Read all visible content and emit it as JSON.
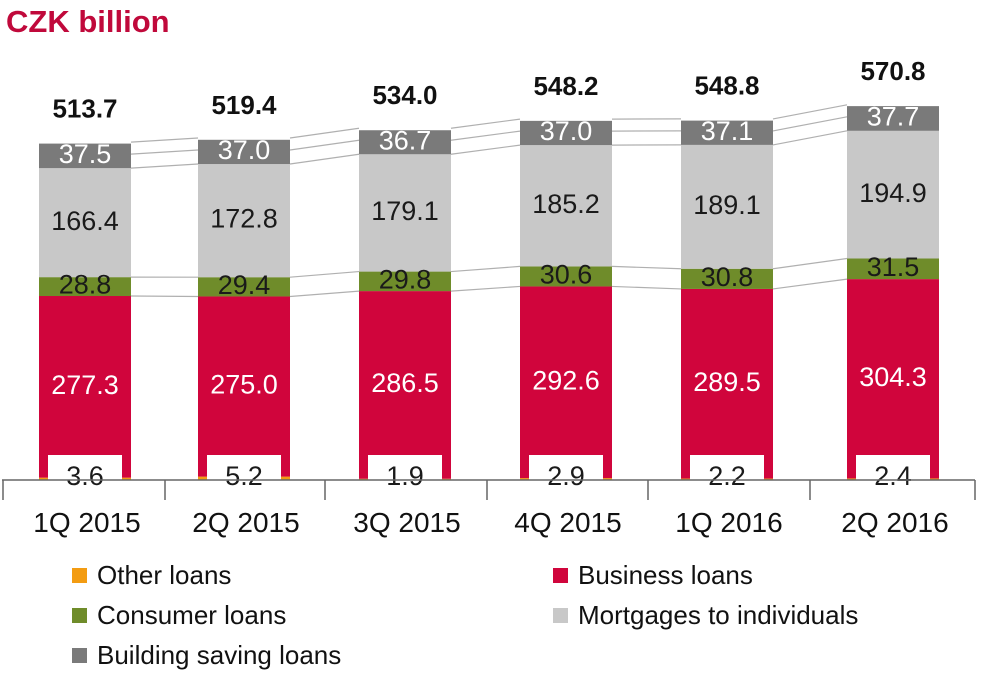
{
  "chart_data": {
    "type": "bar",
    "stacked": true,
    "title": "CZK billion",
    "categories": [
      "1Q 2015",
      "2Q 2015",
      "3Q 2015",
      "4Q 2015",
      "1Q 2016",
      "2Q 2016"
    ],
    "totals": [
      "513.7",
      "519.4",
      "534.0",
      "548.2",
      "548.8",
      "570.8"
    ],
    "series": [
      {
        "name": "Other loans",
        "color": "#f39c12",
        "values": [
          3.6,
          5.2,
          1.9,
          2.9,
          2.2,
          2.4
        ],
        "labels": [
          "3.6",
          "5.2",
          "1.9",
          "2.9",
          "2.2",
          "2.4"
        ]
      },
      {
        "name": "Business loans",
        "color": "#d0053c",
        "values": [
          277.3,
          275.0,
          286.5,
          292.6,
          289.5,
          304.3
        ],
        "labels": [
          "277.3",
          "275.0",
          "286.5",
          "292.6",
          "289.5",
          "304.3"
        ]
      },
      {
        "name": "Consumer loans",
        "color": "#6f8c2a",
        "values": [
          28.8,
          29.4,
          29.8,
          30.6,
          30.8,
          31.5
        ],
        "labels": [
          "28.8",
          "29.4",
          "29.8",
          "30.6",
          "30.8",
          "31.5"
        ]
      },
      {
        "name": "Mortgages to individuals",
        "color": "#c8c8c8",
        "values": [
          166.4,
          172.8,
          179.1,
          185.2,
          189.1,
          194.9
        ],
        "labels": [
          "166.4",
          "172.8",
          "179.1",
          "185.2",
          "189.1",
          "194.9"
        ]
      },
      {
        "name": "Building saving loans",
        "color": "#7a7a7a",
        "values": [
          37.5,
          37.0,
          36.7,
          37.0,
          37.1,
          37.7
        ],
        "labels": [
          "37.5",
          "37.0",
          "36.7",
          "37.0",
          "37.1",
          "37.7"
        ]
      }
    ],
    "legend_position": "bottom",
    "grid": false
  },
  "colors": {
    "title": "#c0093b",
    "label_dark": "#1a1a1a",
    "label_light": "#ffffff",
    "axis": "#666666"
  }
}
